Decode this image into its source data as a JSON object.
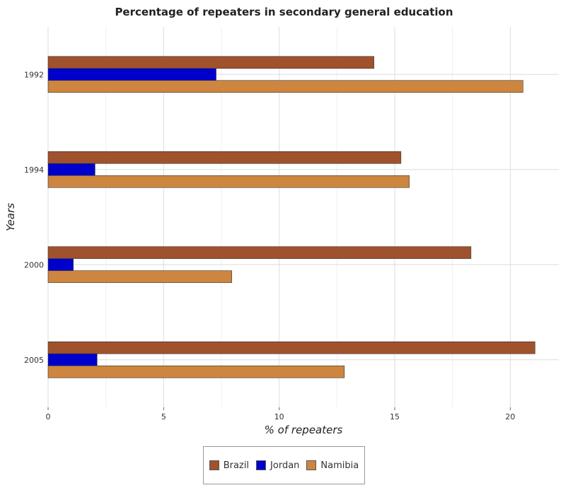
{
  "chart_data": {
    "type": "bar",
    "orientation": "horizontal",
    "title": "Percentage of repeaters in secondary general education",
    "xlabel": "% of repeaters",
    "ylabel": "Years",
    "categories": [
      "1992",
      "1994",
      "2000",
      "2005"
    ],
    "xlim": [
      0,
      22.1
    ],
    "xticks": [
      0,
      5,
      10,
      15,
      20
    ],
    "grid": true,
    "legend_position": "bottom-center",
    "series": [
      {
        "name": "Brazil",
        "color": "#a0522d",
        "values": [
          14.1,
          15.27,
          18.3,
          21.07
        ]
      },
      {
        "name": "Jordan",
        "color": "#0000cd",
        "values": [
          7.27,
          2.03,
          1.09,
          2.12
        ]
      },
      {
        "name": "Namibia",
        "color": "#cd853f",
        "values": [
          20.55,
          15.63,
          7.95,
          12.82
        ]
      }
    ]
  }
}
